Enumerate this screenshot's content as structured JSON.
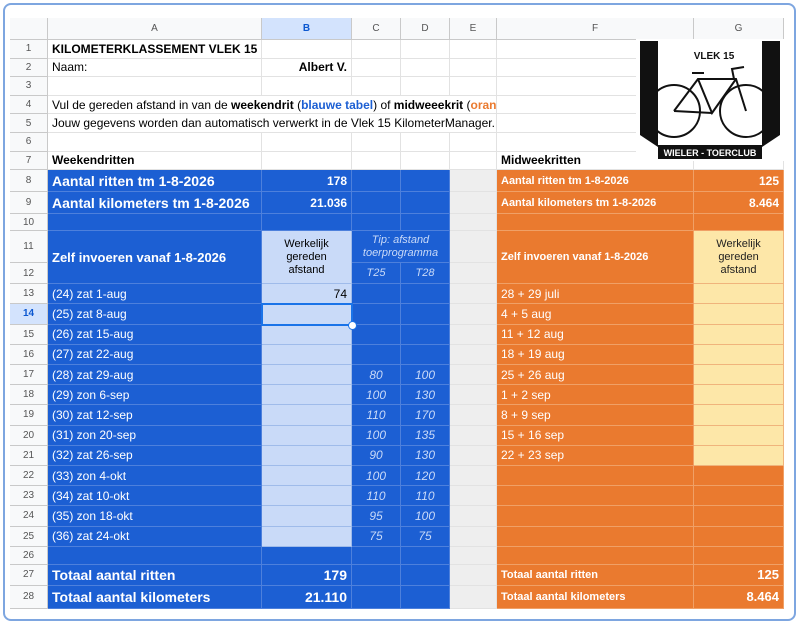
{
  "columns": [
    "A",
    "B",
    "C",
    "D",
    "E",
    "F",
    "G"
  ],
  "row_numbers": [
    1,
    2,
    3,
    4,
    5,
    6,
    7,
    8,
    9,
    10,
    11,
    12,
    13,
    14,
    15,
    16,
    17,
    18,
    19,
    20,
    21,
    22,
    23,
    24,
    25,
    26,
    27,
    28
  ],
  "title": "KILOMETERKLASSEMENT VLEK 15",
  "name_label": "Naam:",
  "name": "Albert V.",
  "instruction": [
    "Vul de gereden afstand in van de ",
    "weekendrit",
    " (",
    "blauwe tabel",
    ") of ",
    "midweeekrit",
    " (",
    "oranje tabel",
    ")."
  ],
  "info": "Jouw gegevens worden dan automatisch verwerkt in de Vlek 15 KilometerManager.",
  "logo": {
    "top": "VLEK 15",
    "bottom": "WIELER - TOERCLUB"
  },
  "weekend": {
    "heading": "Weekendritten",
    "rides_label": "Aantal ritten tm 1-8-2026",
    "rides_count": 178,
    "km_label": "Aantal kilometers tm 1-8-2026",
    "km_total": "21.036",
    "input_label": "Zelf invoeren vanaf 1-8-2026",
    "column_header": [
      "Werkelijk",
      "gereden",
      "afstand"
    ],
    "tip_header": [
      "Tip: afstand",
      "toerprogramma"
    ],
    "t25": "T25",
    "t28": "T28",
    "rides": [
      {
        "date": "(24) zat 1-aug",
        "actual": 74
      },
      {
        "date": "(25) zat 8-aug"
      },
      {
        "date": "(26) zat 15-aug"
      },
      {
        "date": "(27) zat 22-aug"
      },
      {
        "date": "(28) zat 29-aug",
        "t25": 80,
        "t28": 100
      },
      {
        "date": "(29) zon 6-sep",
        "t25": 100,
        "t28": 130
      },
      {
        "date": "(30) zat 12-sep",
        "t25": 110,
        "t28": 170
      },
      {
        "date": "(31) zon 20-sep",
        "t25": 100,
        "t28": 135
      },
      {
        "date": "(32) zat 26-sep",
        "t25": 90,
        "t28": 130
      },
      {
        "date": "(33) zon 4-okt",
        "t25": 100,
        "t28": 120
      },
      {
        "date": "(34) zat 10-okt",
        "t25": 110,
        "t28": 110
      },
      {
        "date": "(35) zon 18-okt",
        "t25": 95,
        "t28": 100
      },
      {
        "date": "(36) zat 24-okt",
        "t25": 75,
        "t28": 75
      }
    ],
    "total_rides_label": "Totaal aantal ritten",
    "total_rides": 179,
    "total_km_label": "Totaal aantal kilometers",
    "total_km": "21.110"
  },
  "midweek": {
    "heading": "Midweekritten",
    "rides_label": "Aantal ritten tm 1-8-2026",
    "rides_count": 125,
    "km_label": "Aantal kilometers tm 1-8-2026",
    "km_total": "8.464",
    "input_label": "Zelf invoeren vanaf 1-8-2026",
    "column_header": [
      "Werkelijk",
      "gereden",
      "afstand"
    ],
    "rides": [
      "28 + 29 juli",
      "4 + 5 aug",
      "11 + 12 aug",
      "18 + 19 aug",
      "25 + 26 aug",
      "1 + 2 sep",
      "8 + 9 sep",
      "15 + 16 sep",
      "22 + 23 sep"
    ],
    "total_rides_label": "Totaal aantal ritten",
    "total_rides": 125,
    "total_km_label": "Totaal aantal kilometers",
    "total_km": "8.464"
  }
}
